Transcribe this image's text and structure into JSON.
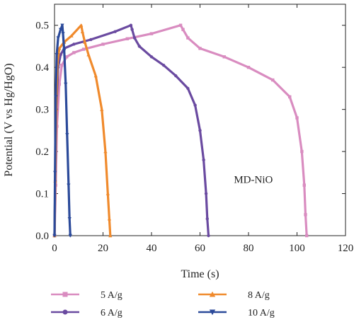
{
  "chart_data": {
    "type": "line",
    "title": "",
    "xlabel": "Time (s)",
    "ylabel": "Potential (V vs Hg/HgO)",
    "xlim": [
      0,
      120
    ],
    "ylim": [
      0,
      0.55
    ],
    "xticks": [
      "0",
      "20",
      "40",
      "60",
      "80",
      "100",
      "120"
    ],
    "yticks": [
      "0.0",
      "0.1",
      "0.2",
      "0.3",
      "0.4",
      "0.5"
    ],
    "grid": false,
    "annotation": "MD-NiO",
    "legend_position": "below",
    "series": [
      {
        "name": "5 A/g",
        "color": "#d98cc0",
        "marker": "square",
        "x": [
          0,
          0.5,
          1,
          2,
          3,
          5,
          8,
          12,
          20,
          30,
          40,
          52,
          53,
          55,
          60,
          70,
          80,
          90,
          97,
          100,
          102,
          103,
          103.5,
          104
        ],
        "y": [
          0,
          0.12,
          0.26,
          0.36,
          0.405,
          0.425,
          0.435,
          0.443,
          0.455,
          0.468,
          0.48,
          0.5,
          0.49,
          0.47,
          0.445,
          0.425,
          0.4,
          0.37,
          0.33,
          0.28,
          0.2,
          0.12,
          0.05,
          0
        ]
      },
      {
        "name": "6 A/g",
        "color": "#6a4aa0",
        "marker": "circle",
        "x": [
          0,
          0.3,
          0.8,
          1.5,
          2.5,
          4,
          8,
          15,
          25,
          31.5,
          32,
          33,
          35,
          40,
          45,
          50,
          55,
          58,
          60,
          61.5,
          62.5,
          63,
          63.5
        ],
        "y": [
          0,
          0.13,
          0.3,
          0.4,
          0.43,
          0.445,
          0.455,
          0.466,
          0.485,
          0.5,
          0.49,
          0.47,
          0.45,
          0.425,
          0.405,
          0.38,
          0.35,
          0.31,
          0.25,
          0.18,
          0.1,
          0.04,
          0
        ]
      },
      {
        "name": "8 A/g",
        "color": "#f08a2c",
        "marker": "triangle-up",
        "x": [
          0,
          0.3,
          0.7,
          1.2,
          2,
          4,
          7,
          11,
          11.5,
          12.5,
          14,
          17,
          19.5,
          21,
          22,
          22.6,
          23
        ],
        "y": [
          0,
          0.13,
          0.3,
          0.41,
          0.445,
          0.46,
          0.475,
          0.5,
          0.485,
          0.46,
          0.43,
          0.38,
          0.3,
          0.2,
          0.1,
          0.04,
          0
        ]
      },
      {
        "name": "10 A/g",
        "color": "#2b4a9a",
        "marker": "triangle-down",
        "x": [
          0,
          0.2,
          0.5,
          0.9,
          1.5,
          2.5,
          3.2,
          3.5,
          4,
          4.6,
          5.2,
          5.8,
          6.2,
          6.5
        ],
        "y": [
          0,
          0.15,
          0.33,
          0.43,
          0.47,
          0.49,
          0.5,
          0.48,
          0.44,
          0.36,
          0.24,
          0.12,
          0.04,
          0
        ]
      }
    ]
  }
}
